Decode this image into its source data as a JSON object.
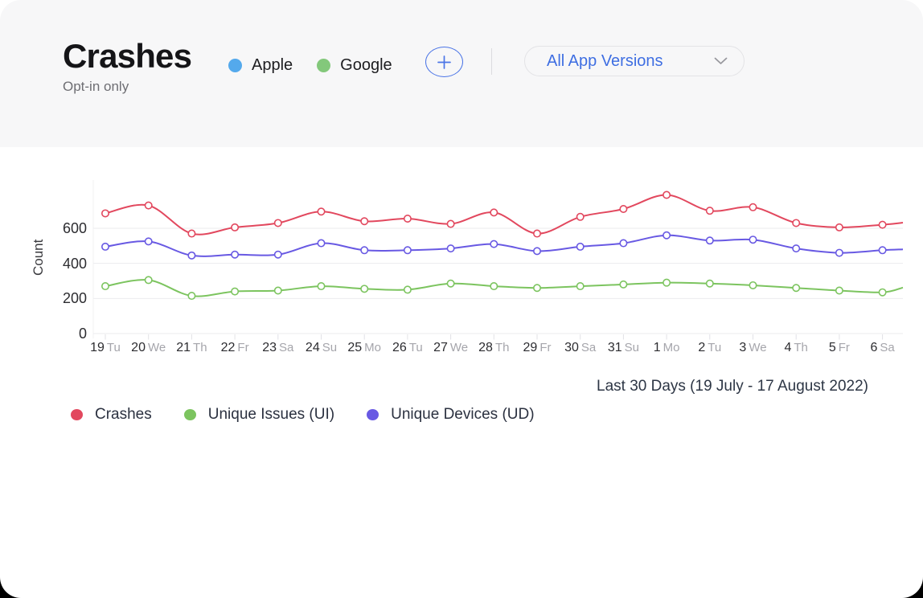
{
  "header": {
    "title": "Crashes",
    "subtitle": "Opt-in only",
    "platforms": [
      {
        "label": "Apple",
        "color": "#54a9ec"
      },
      {
        "label": "Google",
        "color": "#83c87b"
      }
    ],
    "add_button": {
      "icon": "plus-icon",
      "color": "#4a74e6"
    },
    "version_filter": {
      "value": "All App Versions",
      "accent_color": "#3e6ee2"
    }
  },
  "chart_data": {
    "type": "line",
    "ylabel": "Count",
    "yticks": [
      0,
      200,
      400,
      600
    ],
    "ylim": [
      0,
      800
    ],
    "grid": true,
    "legend_position": "bottom",
    "caption": "Last 30 Days (19 July - 17 August 2022)",
    "categories": [
      "19 Tu",
      "20 We",
      "21 Th",
      "22 Fr",
      "23 Sa",
      "24 Su",
      "25 Mo",
      "26 Tu",
      "27 We",
      "28 Th",
      "29 Fr",
      "30 Sa",
      "31 Su",
      "1 Mo",
      "2 Tu",
      "3 We",
      "4 Th",
      "5 Fr",
      "6 Sa"
    ],
    "series": [
      {
        "name": "Crashes",
        "color": "#e2485e",
        "values": [
          685,
          730,
          570,
          605,
          630,
          695,
          640,
          655,
          625,
          690,
          570,
          665,
          710,
          790,
          700,
          720,
          630,
          605,
          620
        ],
        "clipped_next_value": 632
      },
      {
        "name": "Unique Issues (UI)",
        "color": "#7cc45f",
        "values": [
          270,
          305,
          215,
          240,
          245,
          270,
          255,
          250,
          285,
          270,
          260,
          270,
          280,
          290,
          285,
          275,
          260,
          245,
          235
        ],
        "clipped_next_value": 262
      },
      {
        "name": "Unique Devices (UD)",
        "color": "#6859e3",
        "values": [
          495,
          525,
          445,
          450,
          450,
          515,
          475,
          475,
          485,
          510,
          470,
          495,
          515,
          560,
          530,
          535,
          485,
          460,
          475
        ],
        "clipped_next_value": 480
      }
    ]
  }
}
